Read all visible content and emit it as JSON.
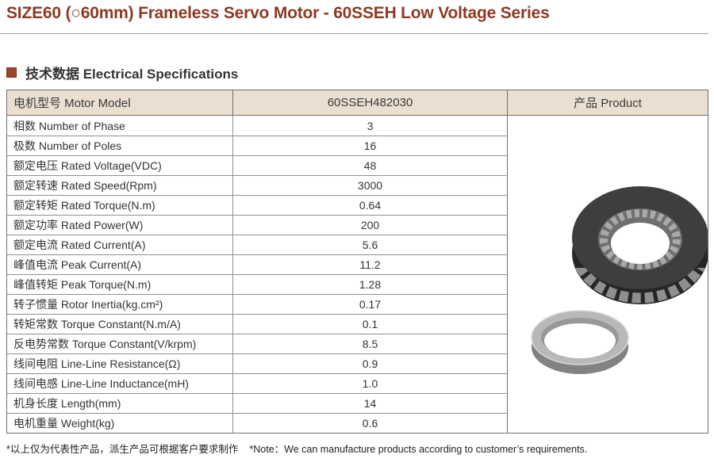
{
  "page": {
    "title": "SIZE60 (○60mm) Frameless Servo Motor - 60SSEH Low Voltage Series"
  },
  "section": {
    "heading": "技术数据 Electrical Specifications"
  },
  "table": {
    "headers": {
      "model": "电机型号 Motor Model",
      "value": "60SSEH482030",
      "product": "产品 Product"
    },
    "rows": [
      {
        "label": "相数 Number of Phase",
        "value": "3"
      },
      {
        "label": "极数 Number of Poles",
        "value": "16"
      },
      {
        "label": "额定电压 Rated Voltage(VDC)",
        "value": "48"
      },
      {
        "label": "额定转速 Rated Speed(Rpm)",
        "value": "3000"
      },
      {
        "label": "额定转矩 Rated Torque(N.m)",
        "value": "0.64"
      },
      {
        "label": "额定功率 Rated Power(W)",
        "value": "200"
      },
      {
        "label": "额定电流 Rated Current(A)",
        "value": "5.6"
      },
      {
        "label": "峰值电流 Peak Current(A)",
        "value": "11.2"
      },
      {
        "label": "峰值转矩 Peak Torque(N.m)",
        "value": "1.28"
      },
      {
        "label": "转子惯量 Rotor Inertia(kg.cm²)",
        "value": "0.17"
      },
      {
        "label": "转矩常数 Torque Constant(N.m/A)",
        "value": "0.1"
      },
      {
        "label": "反电势常数 Torque Constant(V/krpm)",
        "value": "8.5"
      },
      {
        "label": "线间电阻 Line-Line Resistance(Ω)",
        "value": "0.9"
      },
      {
        "label": "线间电感 Line-Line Inductance(mH)",
        "value": "1.0"
      },
      {
        "label": "机身长度 Length(mm)",
        "value": "14"
      },
      {
        "label": "电机重量 Weight(kg)",
        "value": "0.6"
      }
    ]
  },
  "product": {
    "images": [
      "stator-ring",
      "rotor-ring"
    ]
  },
  "footnote": {
    "cn": "*以上仅为代表性产品，派生产品可根据客户要求制作",
    "en": "*Note：We can manufacture products according to customer’s requirements."
  },
  "colors": {
    "accent": "#8B3A24",
    "bullet": "#A04527",
    "table_header_bg": "#EADFD0",
    "table_border": "#6F6F6F",
    "text": "#333333"
  }
}
